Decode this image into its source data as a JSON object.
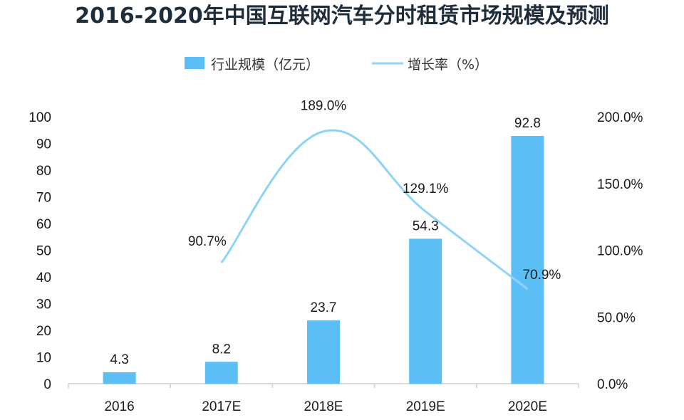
{
  "chart_data": {
    "type": "bar",
    "title": "2016-2020年中国互联网汽车分时租赁市场规模及预测",
    "categories": [
      "2016",
      "2017E",
      "2018E",
      "2019E",
      "2020E"
    ],
    "series": [
      {
        "name": "行业规模（亿元）",
        "kind": "bar",
        "axis": "left",
        "color": "#5bbff5",
        "values": [
          4.3,
          8.2,
          23.7,
          54.3,
          92.8
        ],
        "labels": [
          "4.3",
          "8.2",
          "23.7",
          "54.3",
          "92.8"
        ]
      },
      {
        "name": "增长率（%）",
        "kind": "line",
        "axis": "right",
        "color": "#8fd3f7",
        "values": [
          null,
          90.7,
          189.0,
          129.1,
          70.9
        ],
        "labels": [
          "",
          "90.7%",
          "189.0%",
          "129.1%",
          "70.9%"
        ]
      }
    ],
    "y_left": {
      "range": [
        0,
        100
      ],
      "ticks": [
        "0",
        "10",
        "20",
        "30",
        "40",
        "50",
        "60",
        "70",
        "80",
        "90",
        "100"
      ]
    },
    "y_right": {
      "range": [
        0,
        200
      ],
      "ticks": [
        "0.0%",
        "50.0%",
        "100.0%",
        "150.0%",
        "200.0%"
      ]
    },
    "legend_position": "top",
    "grid": false
  }
}
